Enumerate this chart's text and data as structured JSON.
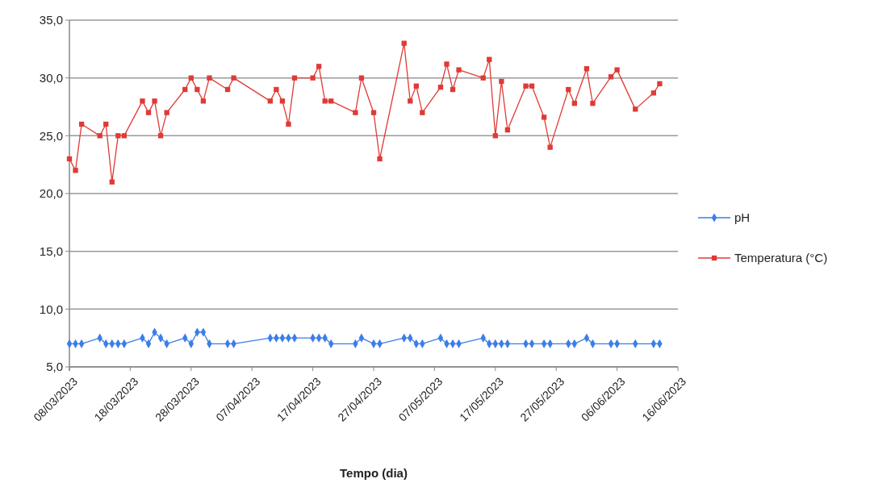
{
  "chart_data": {
    "type": "line",
    "xlabel": "Tempo (dia)",
    "x": [
      "2023-03-08",
      "2023-03-09",
      "2023-03-10",
      "2023-03-13",
      "2023-03-14",
      "2023-03-15",
      "2023-03-16",
      "2023-03-17",
      "2023-03-20",
      "2023-03-21",
      "2023-03-22",
      "2023-03-23",
      "2023-03-24",
      "2023-03-27",
      "2023-03-28",
      "2023-03-29",
      "2023-03-30",
      "2023-03-31",
      "2023-04-03",
      "2023-04-04",
      "2023-04-10",
      "2023-04-11",
      "2023-04-12",
      "2023-04-13",
      "2023-04-14",
      "2023-04-17",
      "2023-04-18",
      "2023-04-19",
      "2023-04-20",
      "2023-04-24",
      "2023-04-25",
      "2023-04-27",
      "2023-04-28",
      "2023-05-02",
      "2023-05-03",
      "2023-05-04",
      "2023-05-05",
      "2023-05-08",
      "2023-05-09",
      "2023-05-10",
      "2023-05-11",
      "2023-05-15",
      "2023-05-16",
      "2023-05-17",
      "2023-05-18",
      "2023-05-19",
      "2023-05-22",
      "2023-05-23",
      "2023-05-25",
      "2023-05-26",
      "2023-05-29",
      "2023-05-30",
      "2023-06-01",
      "2023-06-02",
      "2023-06-05",
      "2023-06-06",
      "2023-06-09",
      "2023-06-12",
      "2023-06-13"
    ],
    "series": [
      {
        "name": "pH",
        "color": "#3c7ee8",
        "marker": "diamond",
        "values": [
          7,
          7,
          7,
          7.5,
          7,
          7,
          7,
          7,
          7.5,
          7,
          8,
          7.5,
          7,
          7.5,
          7,
          8,
          8,
          7,
          7,
          7,
          7.5,
          7.5,
          7.5,
          7.5,
          7.5,
          7.5,
          7.5,
          7.5,
          7,
          7,
          7.5,
          7,
          7,
          7.5,
          7.5,
          7,
          7,
          7.5,
          7,
          7,
          7,
          7.5,
          7,
          7,
          7,
          7,
          7,
          7,
          7,
          7,
          7,
          7,
          7.5,
          7,
          7,
          7,
          7,
          7,
          7
        ]
      },
      {
        "name": "Temperatura (°C)",
        "color": "#e03a36",
        "marker": "square",
        "values": [
          23,
          22,
          26,
          25,
          26,
          21,
          25,
          25,
          28,
          27,
          28,
          25,
          27,
          29,
          30,
          29,
          28,
          30,
          29,
          30,
          28,
          29,
          28,
          26,
          30,
          30,
          31,
          28,
          28,
          27,
          30,
          27,
          23,
          33,
          28,
          29.3,
          27,
          29.2,
          31.2,
          29,
          30.7,
          30,
          31.6,
          25,
          29.7,
          25.5,
          29.3,
          29.3,
          26.6,
          24,
          29,
          27.8,
          30.8,
          27.8,
          30.1,
          30.7,
          27.3,
          28.7,
          29.5
        ]
      }
    ],
    "xlim": [
      "2023-03-08",
      "2023-06-16"
    ],
    "xticks": [
      {
        "value": "2023-03-08",
        "label": "08/03/2023"
      },
      {
        "value": "2023-03-18",
        "label": "18/03/2023"
      },
      {
        "value": "2023-03-28",
        "label": "28/03/2023"
      },
      {
        "value": "2023-04-07",
        "label": "07/04/2023"
      },
      {
        "value": "2023-04-17",
        "label": "17/04/2023"
      },
      {
        "value": "2023-04-27",
        "label": "27/04/2023"
      },
      {
        "value": "2023-05-07",
        "label": "07/05/2023"
      },
      {
        "value": "2023-05-17",
        "label": "17/05/2023"
      },
      {
        "value": "2023-05-27",
        "label": "27/05/2023"
      },
      {
        "value": "2023-06-06",
        "label": "06/06/2023"
      },
      {
        "value": "2023-06-16",
        "label": "16/06/2023"
      }
    ],
    "ylim": [
      5,
      35
    ],
    "yticks": [
      {
        "value": 5,
        "label": "5,0"
      },
      {
        "value": 10,
        "label": "10,0"
      },
      {
        "value": 15,
        "label": "15,0"
      },
      {
        "value": 20,
        "label": "20,0"
      },
      {
        "value": 25,
        "label": "25,0"
      },
      {
        "value": 30,
        "label": "30,0"
      },
      {
        "value": 35,
        "label": "35,0"
      }
    ],
    "grid": "y",
    "legend": "right",
    "line_style": "solid"
  }
}
